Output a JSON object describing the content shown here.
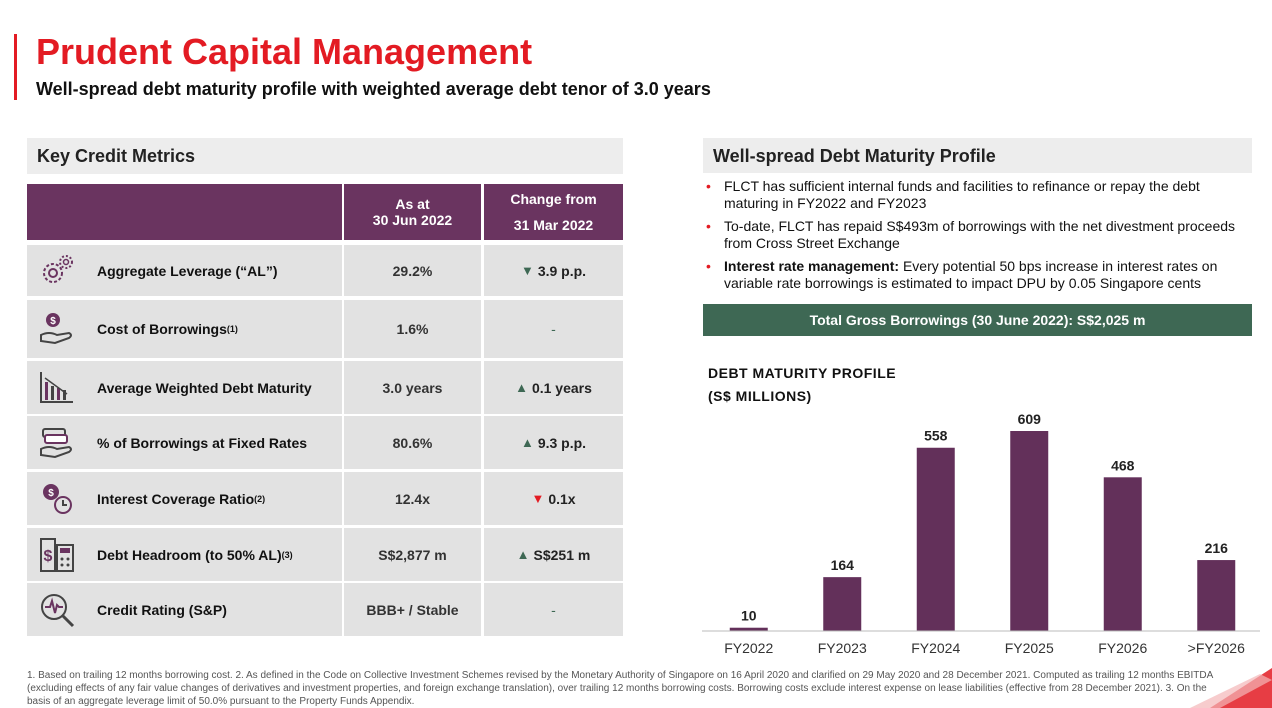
{
  "header": {
    "title": "Prudent Capital Management",
    "subtitle": "Well-spread debt maturity profile with weighted average debt tenor of 3.0 years"
  },
  "left": {
    "section_title": "Key Credit Metrics",
    "col_as_at_1": "As at",
    "col_as_at_2": "30 Jun 2022",
    "col_change_1": "Change from",
    "col_change_2": "31 Mar 2022",
    "rows": [
      {
        "label": "Aggregate Leverage (“AL”)",
        "note": "",
        "value": "29.2%",
        "change": "3.9 p.p.",
        "dir": "down",
        "icon": "gears-icon"
      },
      {
        "label": "Cost of Borrowings",
        "note": "(1)",
        "value": "1.6%",
        "change": "-",
        "dir": "none",
        "icon": "money-hand-icon"
      },
      {
        "label": "Average Weighted Debt Maturity",
        "note": "",
        "value": "3.0 years",
        "change": "0.1 years",
        "dir": "up",
        "icon": "bar-chart-icon"
      },
      {
        "label": "% of Borrowings at Fixed Rates",
        "note": "",
        "value": "80.6%",
        "change": "9.3 p.p.",
        "dir": "up",
        "icon": "cash-stack-icon"
      },
      {
        "label": "Interest Coverage Ratio",
        "note": "(2)",
        "value": "12.4x",
        "change": "0.1x",
        "dir": "down-red",
        "icon": "coin-clock-icon"
      },
      {
        "label": "Debt Headroom (to 50% AL)",
        "note": "(3)",
        "value": "S$2,877 m",
        "change": "S$251 m",
        "dir": "up",
        "icon": "dollar-calculator-icon"
      },
      {
        "label": "Credit Rating (S&P)",
        "note": "",
        "value": "BBB+ / Stable",
        "change": "-",
        "dir": "none",
        "icon": "magnifier-icon"
      }
    ],
    "arrow_colors": {
      "up": "#3e6854",
      "down": "#3e6854",
      "down-red": "#e31b23"
    }
  },
  "right": {
    "section_title": "Well-spread Debt Maturity Profile",
    "bullets": [
      {
        "bold": "",
        "text": "FLCT has sufficient internal funds and facilities to refinance or repay the debt maturing in FY2022 and FY2023"
      },
      {
        "bold": "",
        "text": "To-date, FLCT has repaid S$493m of borrowings with the net divestment proceeds from Cross Street Exchange"
      },
      {
        "bold": "Interest rate management:",
        "text": " Every potential 50 bps increase in interest rates on variable rate borrowings is estimated to impact DPU by 0.05 Singapore cents"
      }
    ],
    "total_banner": "Total Gross Borrowings (30 June 2022): S$2,025 m"
  },
  "chart_data": {
    "type": "bar",
    "title": "DEBT MATURITY PROFILE",
    "subtitle": "(S$ MILLIONS)",
    "categories": [
      "FY2022",
      "FY2023",
      "FY2024",
      "FY2025",
      "FY2026",
      ">FY2026"
    ],
    "values": [
      10,
      164,
      558,
      609,
      468,
      216
    ],
    "xlabel": "",
    "ylabel": "",
    "ylim": [
      0,
      609
    ],
    "bar_color": "#63305a",
    "grid": false
  },
  "footnote": "1. Based on trailing 12 months borrowing cost.   2. As defined in the Code on Collective Investment Schemes revised by the Monetary Authority of Singapore on 16 April 2020 and clarified on 29 May 2020 and 28 December 2021. Computed as trailing 12 months EBITDA (excluding effects of any fair value changes of derivatives and investment properties, and foreign exchange translation), over trailing 12 months borrowing costs. Borrowing costs exclude interest expense on lease liabilities (effective from 28 December 2021).   3. On the basis of an aggregate leverage limit of 50.0% pursuant to the Property Funds Appendix."
}
